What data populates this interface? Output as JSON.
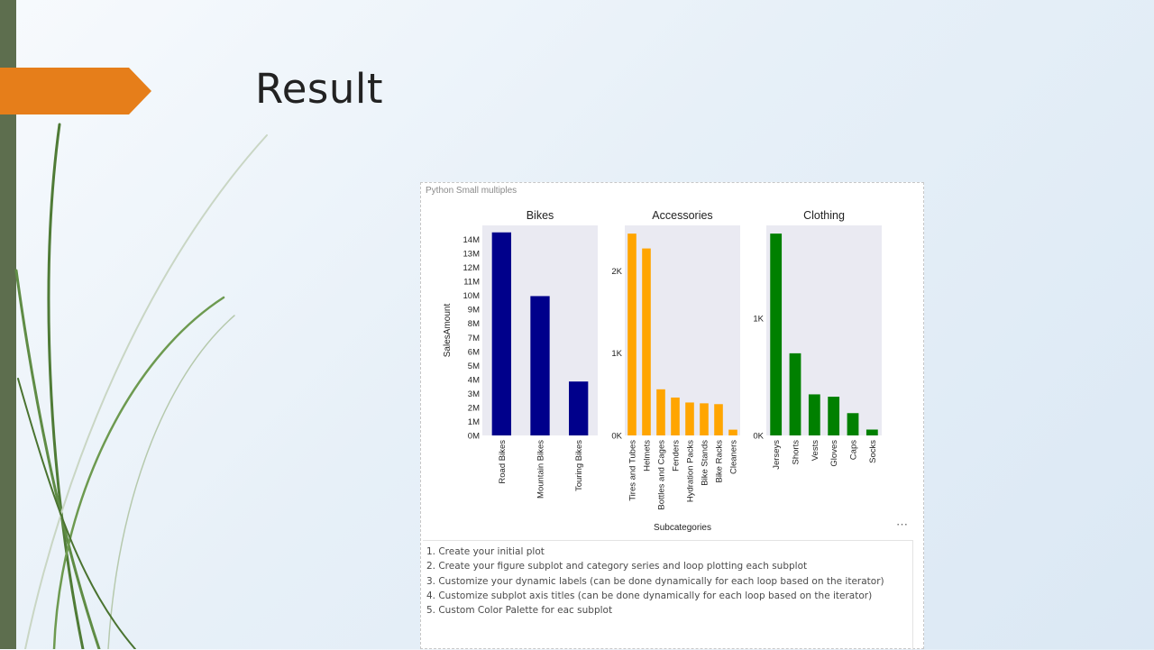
{
  "slide": {
    "title": "Result"
  },
  "visual": {
    "title": "Python Small multiples",
    "more_icon": "more-options-icon"
  },
  "instructions": [
    "1. Create your initial plot",
    "2. Create your figure subplot and category series and loop plotting each subplot",
    "3. Customize your dynamic labels (can be done dynamically for each loop based on the iterator)",
    "4. Customize subplot axis titles (can be done dynamically for each loop based on the iterator)",
    "5. Custom Color Palette for eac subplot"
  ],
  "colors": {
    "accent_orange": "#e67e1a",
    "left_bar": "#5d6e4e",
    "panel_bg": "#eaeaf2"
  },
  "chart_data": [
    {
      "type": "bar",
      "title": "Bikes",
      "ylabel": "SalesAmount",
      "xlabel": "",
      "color": "#00008b",
      "categories": [
        "Road Bikes",
        "Mountain Bikes",
        "Touring Bikes"
      ],
      "values": [
        14500000,
        9950000,
        3850000
      ],
      "ylim": [
        0,
        15000000
      ],
      "yticks": [
        0,
        1000000,
        2000000,
        3000000,
        4000000,
        5000000,
        6000000,
        7000000,
        8000000,
        9000000,
        10000000,
        11000000,
        12000000,
        13000000,
        14000000
      ],
      "ytick_labels": [
        "0M",
        "1M",
        "2M",
        "3M",
        "4M",
        "5M",
        "6M",
        "7M",
        "8M",
        "9M",
        "10M",
        "11M",
        "12M",
        "13M",
        "14M"
      ]
    },
    {
      "type": "bar",
      "title": "Accessories",
      "ylabel": "",
      "xlabel": "Subcategories",
      "color": "#ffa500",
      "categories": [
        "Tires and Tubes",
        "Helmets",
        "Bottles and Cages",
        "Fenders",
        "Hydration Packs",
        "Bike Stands",
        "Bike Racks",
        "Cleaners"
      ],
      "values": [
        2450,
        2270,
        560,
        460,
        400,
        390,
        380,
        70
      ],
      "ylim": [
        0,
        2550
      ],
      "yticks": [
        0,
        1000,
        2000
      ],
      "ytick_labels": [
        "0K",
        "1K",
        "2K"
      ]
    },
    {
      "type": "bar",
      "title": "Clothing",
      "ylabel": "",
      "xlabel": "",
      "color": "#008000",
      "categories": [
        "Jerseys",
        "Shorts",
        "Vests",
        "Gloves",
        "Caps",
        "Socks"
      ],
      "values": [
        1720,
        700,
        350,
        330,
        190,
        50
      ],
      "ylim": [
        0,
        1790
      ],
      "yticks": [
        0,
        1000
      ],
      "ytick_labels": [
        "0K",
        "1K"
      ]
    }
  ]
}
